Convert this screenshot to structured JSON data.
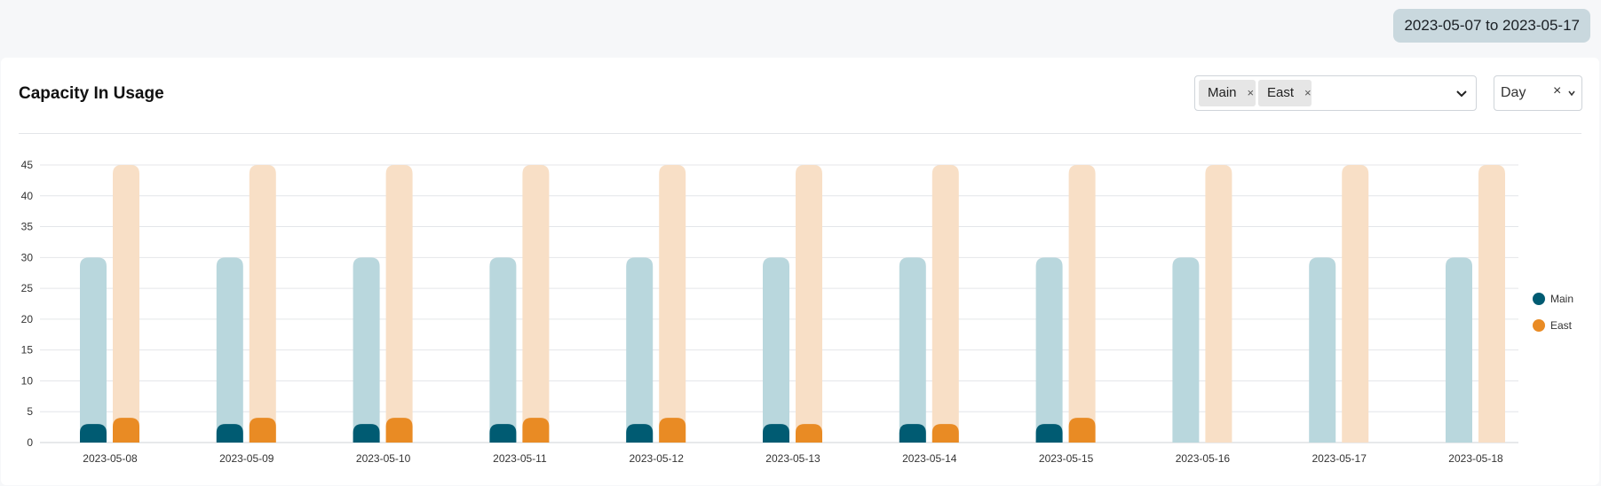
{
  "header": {
    "date_range": "2023-05-07 to 2023-05-17"
  },
  "card": {
    "title": "Capacity In Usage",
    "location_filter": {
      "selected": [
        {
          "label": "Main",
          "remove": "×"
        },
        {
          "label": "East",
          "remove": "×"
        }
      ]
    },
    "granularity": {
      "value": "Day",
      "clear": "×"
    }
  },
  "colors": {
    "main": "#005b72",
    "main_light": "#b9d7dd",
    "east": "#e98b24",
    "east_light": "#f8dfc6"
  },
  "chart_data": {
    "type": "bar",
    "categories": [
      "2023-05-08",
      "2023-05-09",
      "2023-05-10",
      "2023-05-11",
      "2023-05-12",
      "2023-05-13",
      "2023-05-14",
      "2023-05-15",
      "2023-05-16",
      "2023-05-17",
      "2023-05-18"
    ],
    "series": [
      {
        "name": "Main",
        "capacity": [
          30,
          30,
          30,
          30,
          30,
          30,
          30,
          30,
          30,
          30,
          30
        ],
        "values": [
          3,
          3,
          3,
          3,
          3,
          3,
          3,
          3,
          0,
          0,
          0
        ]
      },
      {
        "name": "East",
        "capacity": [
          45,
          45,
          45,
          45,
          45,
          45,
          45,
          45,
          45,
          45,
          45
        ],
        "values": [
          4,
          4,
          4,
          4,
          4,
          3,
          3,
          4,
          0,
          0,
          0
        ]
      }
    ],
    "y_ticks": [
      "0",
      "5",
      "10",
      "15",
      "20",
      "25",
      "30",
      "35",
      "40",
      "45"
    ],
    "ylim": [
      0,
      45
    ],
    "grid": true,
    "legend": "right"
  }
}
